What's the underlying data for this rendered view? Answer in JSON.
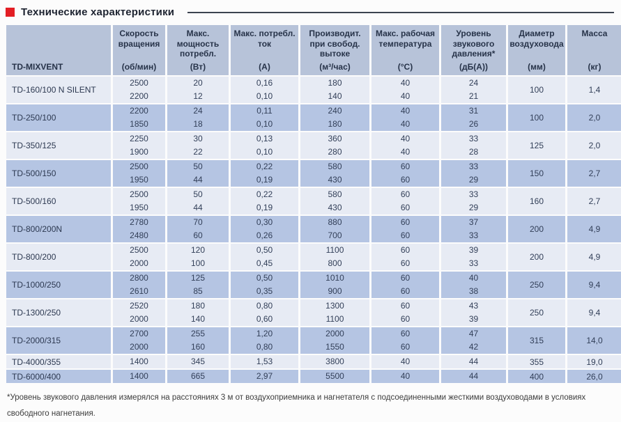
{
  "title": "Технические характеристики",
  "colors": {
    "accent_red": "#e31e24",
    "header_bg": "#b7c3d9",
    "row_dark": "#b5c5e3",
    "row_light": "#e7ebf4",
    "text": "#323f58"
  },
  "table": {
    "model_header": "TD-MIXVENT",
    "columns": [
      {
        "label": "Скорость вращения",
        "unit": "(об/мин)"
      },
      {
        "label": "Макс. мощность потребл.",
        "unit": "(Вт)"
      },
      {
        "label": "Макс. потребл. ток",
        "unit": "(А)"
      },
      {
        "label": "Производит. при свобод. вытоке",
        "unit": "(м³/час)"
      },
      {
        "label": "Макс. рабочая температура",
        "unit": "(°С)"
      },
      {
        "label": "Уровень звукового давления*",
        "unit": "(дБ(А))"
      },
      {
        "label": "Диаметр воздуховода",
        "unit": "(мм)"
      },
      {
        "label": "Масса",
        "unit": "(кг)"
      }
    ],
    "rows": [
      {
        "model": "TD-160/100 N SILENT",
        "speeds": [
          [
            "2500",
            "20",
            "0,16",
            "180",
            "40",
            "24"
          ],
          [
            "2200",
            "12",
            "0,10",
            "140",
            "40",
            "21"
          ]
        ],
        "diameter": "100",
        "mass": "1,4"
      },
      {
        "model": "TD-250/100",
        "speeds": [
          [
            "2200",
            "24",
            "0,11",
            "240",
            "40",
            "31"
          ],
          [
            "1850",
            "18",
            "0,10",
            "180",
            "40",
            "26"
          ]
        ],
        "diameter": "100",
        "mass": "2,0"
      },
      {
        "model": "TD-350/125",
        "speeds": [
          [
            "2250",
            "30",
            "0,13",
            "360",
            "40",
            "33"
          ],
          [
            "1900",
            "22",
            "0,10",
            "280",
            "40",
            "28"
          ]
        ],
        "diameter": "125",
        "mass": "2,0"
      },
      {
        "model": "TD-500/150",
        "speeds": [
          [
            "2500",
            "50",
            "0,22",
            "580",
            "60",
            "33"
          ],
          [
            "1950",
            "44",
            "0,19",
            "430",
            "60",
            "29"
          ]
        ],
        "diameter": "150",
        "mass": "2,7"
      },
      {
        "model": "TD-500/160",
        "speeds": [
          [
            "2500",
            "50",
            "0,22",
            "580",
            "60",
            "33"
          ],
          [
            "1950",
            "44",
            "0,19",
            "430",
            "60",
            "29"
          ]
        ],
        "diameter": "160",
        "mass": "2,7"
      },
      {
        "model": "TD-800/200N",
        "speeds": [
          [
            "2780",
            "70",
            "0,30",
            "880",
            "60",
            "37"
          ],
          [
            "2480",
            "60",
            "0,26",
            "700",
            "60",
            "33"
          ]
        ],
        "diameter": "200",
        "mass": "4,9"
      },
      {
        "model": "TD-800/200",
        "speeds": [
          [
            "2500",
            "120",
            "0,50",
            "1100",
            "60",
            "39"
          ],
          [
            "2000",
            "100",
            "0,45",
            "800",
            "60",
            "33"
          ]
        ],
        "diameter": "200",
        "mass": "4,9"
      },
      {
        "model": "TD-1000/250",
        "speeds": [
          [
            "2800",
            "125",
            "0,50",
            "1010",
            "60",
            "40"
          ],
          [
            "2610",
            "85",
            "0,35",
            "900",
            "60",
            "38"
          ]
        ],
        "diameter": "250",
        "mass": "9,4"
      },
      {
        "model": "TD-1300/250",
        "speeds": [
          [
            "2520",
            "180",
            "0,80",
            "1300",
            "60",
            "43"
          ],
          [
            "2000",
            "140",
            "0,60",
            "1100",
            "60",
            "39"
          ]
        ],
        "diameter": "250",
        "mass": "9,4"
      },
      {
        "model": "TD-2000/315",
        "speeds": [
          [
            "2700",
            "255",
            "1,20",
            "2000",
            "60",
            "47"
          ],
          [
            "2000",
            "160",
            "0,80",
            "1550",
            "60",
            "42"
          ]
        ],
        "diameter": "315",
        "mass": "14,0"
      },
      {
        "model": "TD-4000/355",
        "speeds": [
          [
            "1400",
            "345",
            "1,53",
            "3800",
            "40",
            "44"
          ]
        ],
        "diameter": "355",
        "mass": "19,0"
      },
      {
        "model": "TD-6000/400",
        "speeds": [
          [
            "1400",
            "665",
            "2,97",
            "5500",
            "40",
            "44"
          ]
        ],
        "diameter": "400",
        "mass": "26,0"
      }
    ]
  },
  "footnote": "*Уровень звукового давления измерялся на расстояниях 3 м от воздухоприемника и нагнетателя с подсоединенными жесткими воздуховодами в условиях свободного нагнетания."
}
